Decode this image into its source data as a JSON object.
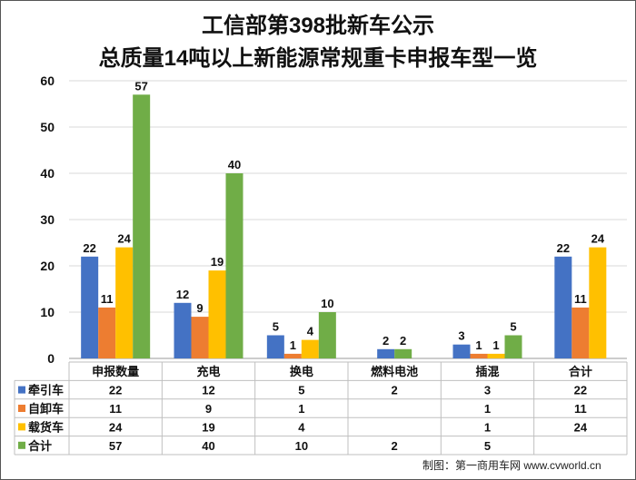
{
  "chart_data": {
    "type": "bar",
    "title_line1": "工信部第398批新车公示",
    "title_line2": "总质量14吨以上新能源常规重卡申报车型一览",
    "categories": [
      "申报数量",
      "充电",
      "换电",
      "燃料电池",
      "插混",
      "合计"
    ],
    "ylim": [
      0,
      60
    ],
    "yticks": [
      "0",
      "10",
      "20",
      "30",
      "40",
      "50",
      "60"
    ],
    "series": [
      {
        "name": "牵引车",
        "color": "#4472C4",
        "values": [
          22,
          12,
          5,
          2,
          3,
          22
        ]
      },
      {
        "name": "自卸车",
        "color": "#ED7D31",
        "values": [
          11,
          9,
          1,
          null,
          1,
          11
        ]
      },
      {
        "name": "载货车",
        "color": "#FFC000",
        "values": [
          24,
          19,
          4,
          null,
          1,
          24
        ]
      },
      {
        "name": "合计",
        "color": "#70AD47",
        "values": [
          57,
          40,
          10,
          2,
          5,
          null
        ]
      }
    ],
    "legend": "table-below"
  },
  "credit": "制图：第一商用车网 www.cvworld.cn"
}
